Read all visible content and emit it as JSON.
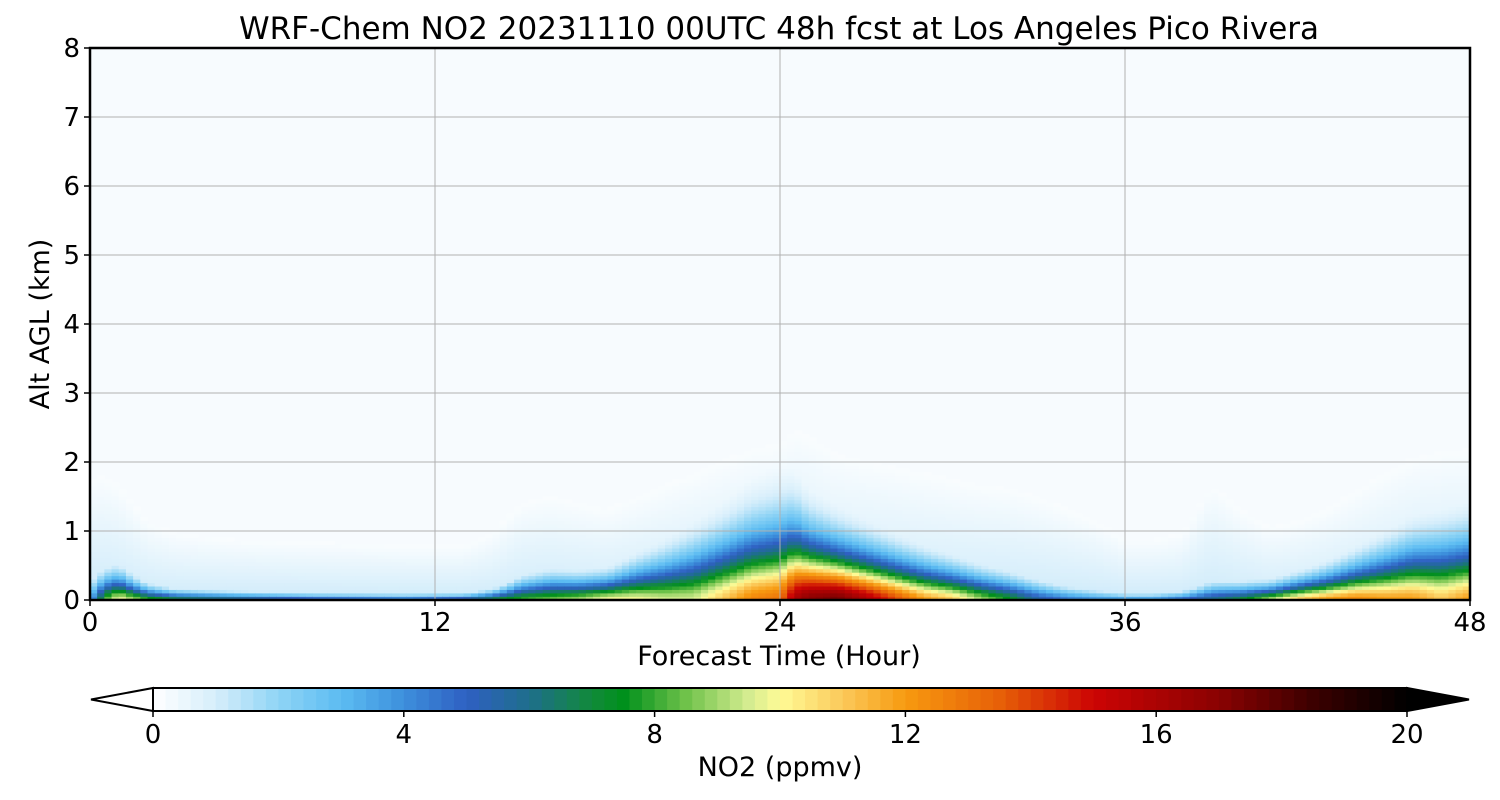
{
  "chart_data": {
    "type": "heatmap",
    "title": "WRF-Chem NO2  20231110 00UTC 48h fcst at Los Angeles Pico Rivera",
    "xlabel": "Forecast Time (Hour)",
    "ylabel": "Alt AGL (km)",
    "xlim": [
      0,
      48
    ],
    "ylim": [
      0,
      8
    ],
    "xticks": [
      0,
      12,
      24,
      36,
      48
    ],
    "yticks": [
      0,
      1,
      2,
      3,
      4,
      5,
      6,
      7,
      8
    ],
    "grid": true,
    "colorbar": {
      "label": "NO2  (ppmv)",
      "range": [
        0,
        20
      ],
      "ticks": [
        0,
        4,
        8,
        12,
        16,
        20
      ],
      "extend": "both",
      "stops": [
        {
          "v": 0,
          "c": "#ffffff"
        },
        {
          "v": 1,
          "c": "#d6eefb"
        },
        {
          "v": 2,
          "c": "#8fd4f5"
        },
        {
          "v": 3,
          "c": "#5cbcf2"
        },
        {
          "v": 4,
          "c": "#3d8fdc"
        },
        {
          "v": 5,
          "c": "#2f60c2"
        },
        {
          "v": 6,
          "c": "#1e6e8c"
        },
        {
          "v": 7,
          "c": "#118a3a"
        },
        {
          "v": 7.5,
          "c": "#00901c"
        },
        {
          "v": 8.5,
          "c": "#6fc24a"
        },
        {
          "v": 9.5,
          "c": "#d4ec90"
        },
        {
          "v": 10,
          "c": "#fffb96"
        },
        {
          "v": 11,
          "c": "#fbc95a"
        },
        {
          "v": 12,
          "c": "#f79a10"
        },
        {
          "v": 13.5,
          "c": "#e76008"
        },
        {
          "v": 15,
          "c": "#cc0404"
        },
        {
          "v": 17,
          "c": "#8a0202"
        },
        {
          "v": 18.5,
          "c": "#3c0000"
        },
        {
          "v": 20,
          "c": "#000000"
        }
      ]
    },
    "profile": {
      "x": [
        0,
        0.5,
        1,
        2,
        3,
        5,
        8,
        11,
        13,
        14,
        15,
        16,
        17,
        18,
        19,
        20,
        21,
        22,
        23,
        24,
        24.5,
        25,
        26,
        27,
        28,
        29,
        30,
        31,
        32,
        33,
        34,
        35,
        36,
        37,
        38,
        39,
        40,
        41,
        42,
        43,
        44,
        45,
        46,
        47,
        48
      ],
      "surface_max": [
        3,
        8,
        10,
        8,
        7,
        6.5,
        5.5,
        5,
        6,
        7,
        8,
        8.5,
        9,
        10,
        10,
        9.5,
        9.5,
        11,
        12.5,
        13,
        16,
        17,
        17.5,
        16,
        14,
        12,
        11,
        9,
        7.5,
        5.5,
        4.5,
        4,
        4,
        4,
        5,
        6,
        7,
        9,
        11,
        12,
        12.5,
        12,
        12,
        11,
        12
      ],
      "mixing_height_km": [
        2.0,
        2.05,
        1.9,
        1.3,
        1.1,
        1.0,
        0.95,
        0.9,
        0.9,
        1.1,
        1.6,
        1.7,
        1.6,
        1.5,
        1.7,
        1.9,
        2.1,
        2.3,
        2.5,
        2.6,
        2.8,
        2.7,
        2.4,
        2.3,
        2.2,
        2.1,
        2.0,
        1.9,
        1.85,
        1.7,
        1.5,
        1.3,
        1.0,
        1.0,
        1.1,
        1.9,
        1.5,
        1.2,
        1.3,
        1.5,
        1.8,
        2.1,
        2.35,
        2.45,
        2.5
      ],
      "shape": [
        0.12,
        0.14,
        0.16,
        0.12,
        0.1,
        0.09,
        0.08,
        0.08,
        0.08,
        0.1,
        0.14,
        0.16,
        0.16,
        0.18,
        0.22,
        0.25,
        0.28,
        0.3,
        0.32,
        0.33,
        0.3,
        0.27,
        0.26,
        0.24,
        0.22,
        0.2,
        0.18,
        0.16,
        0.14,
        0.12,
        0.1,
        0.09,
        0.08,
        0.08,
        0.09,
        0.1,
        0.12,
        0.15,
        0.18,
        0.2,
        0.22,
        0.24,
        0.26,
        0.27,
        0.28
      ]
    }
  }
}
